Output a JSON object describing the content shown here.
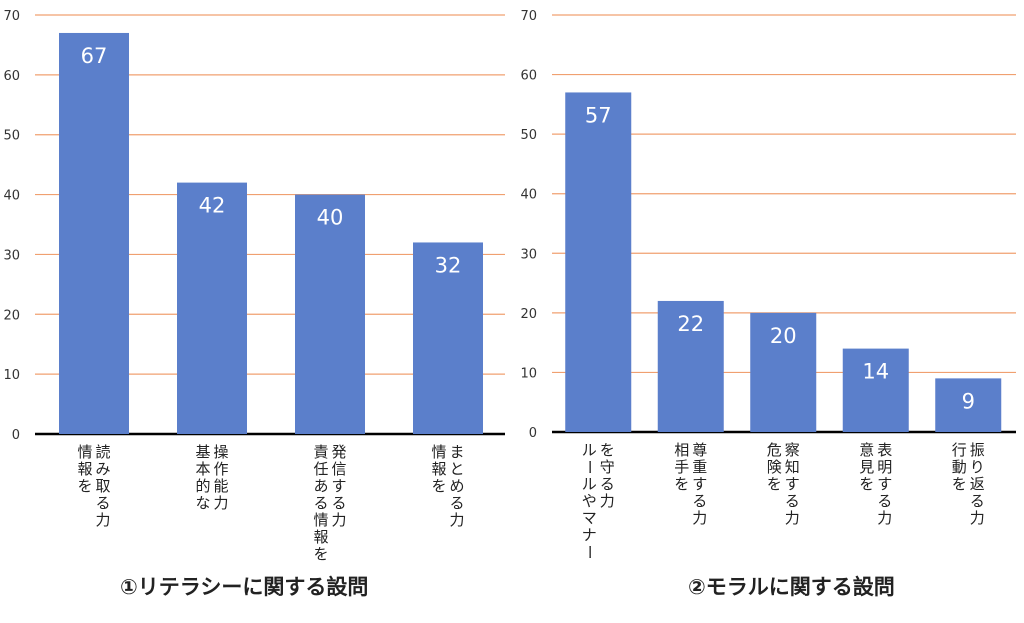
{
  "chart_data": [
    {
      "type": "bar",
      "title": "①リテラシーに関する設問",
      "categories": [
        [
          "読み取る力",
          "情報を"
        ],
        [
          "操作能力",
          "基本的な"
        ],
        [
          "発信する力",
          "責任ある情報を"
        ],
        [
          "まとめる力",
          "情報を"
        ]
      ],
      "values": [
        67,
        42,
        40,
        32
      ],
      "data_labels": [
        "67",
        "42",
        "40",
        "32"
      ],
      "ylim": [
        0,
        70
      ],
      "yticks": [
        "0",
        "10",
        "20",
        "30",
        "40",
        "50",
        "60",
        "70"
      ],
      "grid": true,
      "bar_color": "#5b7fcb",
      "grid_color": "#f0a070"
    },
    {
      "type": "bar",
      "title": "②モラルに関する設問",
      "categories": [
        [
          "を守る力",
          "ルールやマナー"
        ],
        [
          "尊重する力",
          "相手を"
        ],
        [
          "察知する力",
          "危険を"
        ],
        [
          "表明する力",
          "意見を"
        ],
        [
          "振り返る力",
          "行動を"
        ]
      ],
      "values": [
        57,
        22,
        20,
        14,
        9
      ],
      "data_labels": [
        "57",
        "22",
        "20",
        "14",
        "9"
      ],
      "ylim": [
        0,
        70
      ],
      "yticks": [
        "0",
        "10",
        "20",
        "30",
        "40",
        "50",
        "60",
        "70"
      ],
      "grid": true,
      "bar_color": "#5b7fcb",
      "grid_color": "#f0a070"
    }
  ]
}
